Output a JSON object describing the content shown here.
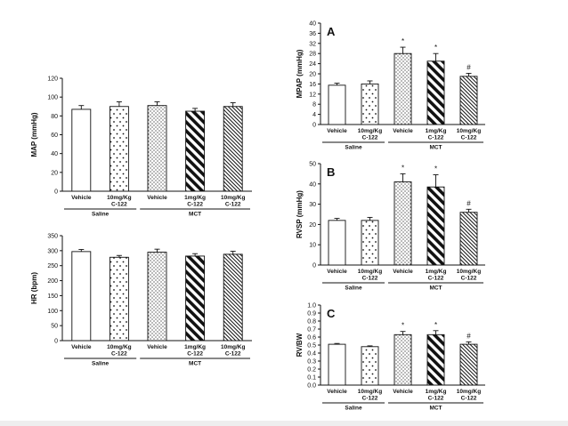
{
  "chart_data": [
    {
      "id": "map",
      "type": "bar",
      "title": "",
      "panel_label": "",
      "ylabel": "MAP (mmHg)",
      "ylim": [
        0,
        120
      ],
      "yticks": [
        "0",
        "20",
        "40",
        "60",
        "80",
        "100",
        "120"
      ],
      "categories": [
        "Vehicle",
        "10mg/Kg C-122",
        "Vehicle",
        "1mg/Kg C-122",
        "10mg/Kg C-122"
      ],
      "category_lines": [
        [
          "Vehicle"
        ],
        [
          "10mg/Kg",
          "C-122"
        ],
        [
          "Vehicle"
        ],
        [
          "1mg/Kg",
          "C-122"
        ],
        [
          "10mg/Kg",
          "C-122"
        ]
      ],
      "groups": [
        {
          "label": "Saline",
          "bars": [
            0,
            1
          ]
        },
        {
          "label": "MCT",
          "bars": [
            2,
            4
          ]
        }
      ],
      "values": [
        87,
        90,
        91,
        85,
        90
      ],
      "errors": [
        4,
        5,
        4,
        3,
        4
      ],
      "annotations": [
        "",
        "",
        "",
        "",
        ""
      ],
      "patterns": [
        "white",
        "sparse-dots",
        "dense-dots",
        "heavy-stripes",
        "fine-stripes"
      ]
    },
    {
      "id": "hr",
      "type": "bar",
      "title": "",
      "panel_label": "",
      "ylabel": "HR (bpm)",
      "ylim": [
        0,
        350
      ],
      "yticks": [
        "0",
        "50",
        "100",
        "150",
        "200",
        "250",
        "300",
        "350"
      ],
      "categories": [
        "Vehicle",
        "10mg/Kg C-122",
        "Vehicle",
        "1mg/Kg C-122",
        "10mg/Kg C-122"
      ],
      "category_lines": [
        [
          "Vehicle"
        ],
        [
          "10mg/Kg",
          "C-122"
        ],
        [
          "Vehicle"
        ],
        [
          "1mg/Kg",
          "C-122"
        ],
        [
          "10mg/Kg",
          "C-122"
        ]
      ],
      "groups": [
        {
          "label": "Saline",
          "bars": [
            0,
            1
          ]
        },
        {
          "label": "MCT",
          "bars": [
            2,
            4
          ]
        }
      ],
      "values": [
        297,
        278,
        295,
        282,
        288
      ],
      "errors": [
        7,
        6,
        10,
        8,
        10
      ],
      "annotations": [
        "",
        "",
        "",
        "",
        ""
      ],
      "patterns": [
        "white",
        "sparse-dots",
        "dense-dots",
        "heavy-stripes",
        "fine-stripes"
      ]
    },
    {
      "id": "mpap",
      "type": "bar",
      "title": "",
      "panel_label": "A",
      "ylabel": "MPAP (mmHg)",
      "ylim": [
        0,
        40
      ],
      "yticks": [
        "0",
        "4",
        "8",
        "12",
        "16",
        "20",
        "24",
        "28",
        "32",
        "36",
        "40"
      ],
      "categories": [
        "Vehicle",
        "10mg/Kg C-122",
        "Vehicle",
        "1mg/Kg C-122",
        "10mg/Kg C-122"
      ],
      "category_lines": [
        [
          "Vehicle"
        ],
        [
          "10mg/Kg",
          "C-122"
        ],
        [
          "Vehicle"
        ],
        [
          "1mg/Kg",
          "C-122"
        ],
        [
          "10mg/Kg",
          "C-122"
        ]
      ],
      "groups": [
        {
          "label": "Saline",
          "bars": [
            0,
            1
          ]
        },
        {
          "label": "MCT",
          "bars": [
            2,
            4
          ]
        }
      ],
      "values": [
        15.5,
        16,
        28,
        25,
        19
      ],
      "errors": [
        0.8,
        1.2,
        2.5,
        3.0,
        1.2
      ],
      "annotations": [
        "",
        "",
        "*",
        "*",
        "#"
      ],
      "patterns": [
        "white",
        "sparse-dots",
        "dense-dots",
        "heavy-stripes",
        "fine-stripes"
      ]
    },
    {
      "id": "rvsp",
      "type": "bar",
      "title": "",
      "panel_label": "B",
      "ylabel": "RVSP (mmHg)",
      "ylim": [
        0,
        50
      ],
      "yticks": [
        "0",
        "10",
        "20",
        "30",
        "40",
        "50"
      ],
      "categories": [
        "Vehicle",
        "10mg/Kg C-122",
        "Vehicle",
        "1mg/Kg C-122",
        "10mg/Kg C-122"
      ],
      "category_lines": [
        [
          "Vehicle"
        ],
        [
          "10mg/Kg",
          "C-122"
        ],
        [
          "Vehicle"
        ],
        [
          "1mg/Kg",
          "C-122"
        ],
        [
          "10mg/Kg",
          "C-122"
        ]
      ],
      "groups": [
        {
          "label": "Saline",
          "bars": [
            0,
            1
          ]
        },
        {
          "label": "MCT",
          "bars": [
            2,
            4
          ]
        }
      ],
      "values": [
        22,
        22,
        41,
        38.5,
        26
      ],
      "errors": [
        1,
        1.5,
        4,
        6,
        1.5
      ],
      "annotations": [
        "",
        "",
        "*",
        "*",
        "#"
      ],
      "patterns": [
        "white",
        "sparse-dots",
        "dense-dots",
        "heavy-stripes",
        "fine-stripes"
      ]
    },
    {
      "id": "rvbw",
      "type": "bar",
      "title": "",
      "panel_label": "C",
      "ylabel": "RV/BW",
      "ylim": [
        0,
        1.0
      ],
      "yticks": [
        "0.0",
        "0.1",
        "0.2",
        "0.3",
        "0.4",
        "0.5",
        "0.6",
        "0.7",
        "0.8",
        "0.9",
        "1.0"
      ],
      "categories": [
        "Vehicle",
        "10mg/Kg C-122",
        "Vehicle",
        "1mg/Kg C-122",
        "10mg/Kg C-122"
      ],
      "category_lines": [
        [
          "Vehicle"
        ],
        [
          "10mg/Kg",
          "C-122"
        ],
        [
          "Vehicle"
        ],
        [
          "1mg/Kg",
          "C-122"
        ],
        [
          "10mg/Kg",
          "C-122"
        ]
      ],
      "groups": [
        {
          "label": "Saline",
          "bars": [
            0,
            1
          ]
        },
        {
          "label": "MCT",
          "bars": [
            2,
            4
          ]
        }
      ],
      "values": [
        0.51,
        0.48,
        0.63,
        0.63,
        0.51
      ],
      "errors": [
        0.01,
        0.01,
        0.04,
        0.05,
        0.03
      ],
      "annotations": [
        "",
        "",
        "*",
        "*",
        "#"
      ],
      "patterns": [
        "white",
        "sparse-dots",
        "dense-dots",
        "heavy-stripes",
        "fine-stripes"
      ]
    }
  ],
  "colors": {
    "ink": "#111111",
    "fill": "#ffffff"
  }
}
